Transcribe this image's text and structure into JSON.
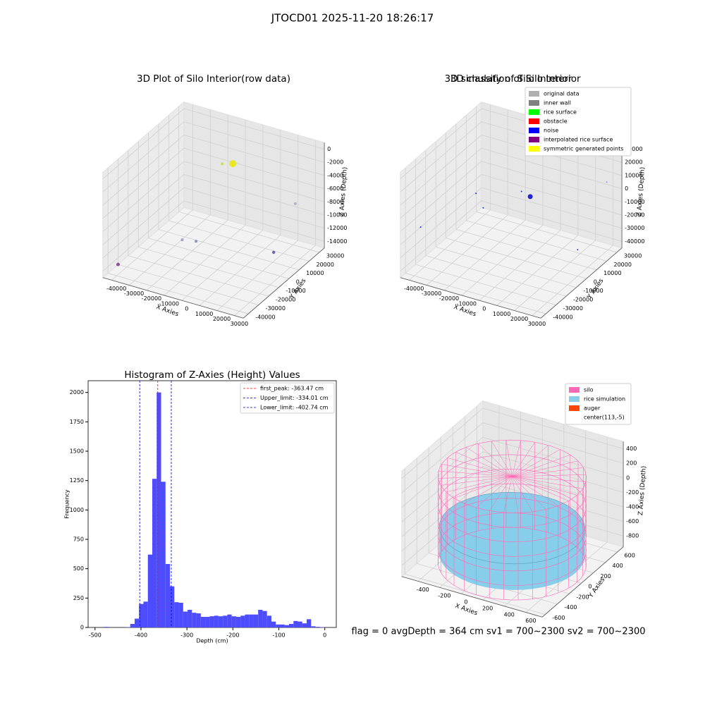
{
  "title": "JTOCD01 2025-11-20 18:26:17",
  "footer": "flag = 0     avgDepth = 364 cm  sv1 = 700~2300  sv2 = 700~2300",
  "chart_data": [
    {
      "type": "scatter3d",
      "title": "3D Plot of Silo Interior(row data)",
      "xlabel": "X Axies",
      "ylabel": "Y Axies",
      "zlabel": "Z Axies (Depth)",
      "xlim": [
        -45000,
        35000
      ],
      "ylim": [
        -45000,
        35000
      ],
      "zlim": [
        -15000,
        1000
      ],
      "xticks": [
        -40000,
        -30000,
        -20000,
        -10000,
        0,
        10000,
        20000,
        30000
      ],
      "yticks": [
        -40000,
        -30000,
        -20000,
        -10000,
        0,
        10000,
        20000,
        30000
      ],
      "zticks": [
        -14000,
        -12000,
        -10000,
        -8000,
        -6000,
        -4000,
        -2000,
        0
      ],
      "points": {
        "x": [
          3000,
          -3000,
          30000,
          -20000,
          -15000,
          35000,
          -45000
        ],
        "y": [
          0,
          0,
          15000,
          -10000,
          -5000,
          -15000,
          -30000
        ],
        "z": [
          0,
          -500,
          -6000,
          -12000,
          -12500,
          -9000,
          -15000
        ],
        "sizes": [
          5,
          2,
          2,
          2,
          2,
          2.2,
          2.5
        ],
        "colors": [
          "#e8e800",
          "#c8d840",
          "#a8a8c8",
          "#9494c4",
          "#8080c0",
          "#5a4a9a",
          "#7a3a8a"
        ]
      }
    },
    {
      "type": "scatter3d",
      "title": "3D classify of Silo Interior",
      "xlabel": "X Axies",
      "ylabel": "Y Axies",
      "zlabel": "Z Axies (Depth)",
      "xlim": [
        -45000,
        35000
      ],
      "ylim": [
        -45000,
        35000
      ],
      "zlim": [
        -45000,
        35000
      ],
      "xticks": [
        -40000,
        -30000,
        -20000,
        -10000,
        0,
        10000,
        20000,
        30000
      ],
      "yticks": [
        -40000,
        -30000,
        -20000,
        -10000,
        0,
        10000,
        20000,
        30000
      ],
      "zticks": [
        -40000,
        -30000,
        -20000,
        -10000,
        0,
        10000,
        20000,
        30000
      ],
      "points": {
        "x": [
          3000,
          -2000,
          -25000,
          -18000,
          30000,
          -45000,
          35000
        ],
        "y": [
          0,
          0,
          -5000,
          -10000,
          0,
          -25000,
          20000
        ],
        "z": [
          5000,
          7000,
          0,
          -5000,
          -25000,
          -20000,
          15000
        ],
        "sizes": [
          3.5,
          1,
          1,
          1,
          1,
          1,
          1
        ],
        "colors": [
          "#0000cc",
          "#0000ff",
          "#0000ff",
          "#0000ff",
          "#0000ff",
          "#0000ff",
          "#8080ff"
        ]
      },
      "legend": [
        {
          "name": "original data",
          "color": "#b0b0b0"
        },
        {
          "name": "inner wall",
          "color": "#808080"
        },
        {
          "name": "rice surface",
          "color": "#00ff00"
        },
        {
          "name": "obstacle",
          "color": "#ff0000"
        },
        {
          "name": "noise",
          "color": "#0000ff"
        },
        {
          "name": "interpolated rice surface",
          "color": "#800080"
        },
        {
          "name": "symmetric generated points",
          "color": "#ffff00"
        }
      ]
    },
    {
      "type": "histogram",
      "title": "Histogram of Z-Axies (Height) Values",
      "xlabel": "Depth (cm)",
      "ylabel": "Frequency",
      "color": "#4d4dff",
      "xlim": [
        -515,
        25
      ],
      "ylim": [
        0,
        2100
      ],
      "xticks": [
        -500,
        -400,
        -300,
        -200,
        -100,
        0
      ],
      "yticks": [
        0,
        250,
        500,
        750,
        1000,
        1250,
        1500,
        1750,
        2000
      ],
      "bins": [
        -481,
        -471.4,
        -461.8,
        -452.2,
        -442.6,
        -433,
        -423.4,
        -413.8,
        -404.2,
        -394.6,
        -385,
        -375.4,
        -365.8,
        -356.2,
        -346.6,
        -337,
        -327.4,
        -317.8,
        -308.2,
        -298.6,
        -289,
        -279.4,
        -269.8,
        -260.2,
        -250.6,
        -241,
        -231.4,
        -221.8,
        -212.2,
        -202.6,
        -193,
        -183.4,
        -173.8,
        -164.2,
        -154.6,
        -145,
        -135.4,
        -125.8,
        -116.2,
        -106.6,
        -97,
        -87.4,
        -77.8,
        -68.2,
        -58.6,
        -49,
        -39.4,
        -29.8,
        -20.2,
        -10.6,
        -1
      ],
      "values": [
        5,
        0,
        0,
        0,
        0,
        3,
        30,
        75,
        200,
        220,
        620,
        1265,
        2000,
        1240,
        540,
        350,
        215,
        210,
        135,
        150,
        125,
        120,
        90,
        90,
        95,
        100,
        95,
        100,
        110,
        95,
        90,
        100,
        110,
        110,
        110,
        150,
        140,
        100,
        50,
        25,
        25,
        20,
        30,
        55,
        50,
        35,
        70,
        10,
        5,
        3
      ],
      "vlines": [
        {
          "name": "first_peak: -363.47 cm",
          "value": -363.47,
          "color": "#ff0000"
        },
        {
          "name": "Upper_limit: -334.01 cm",
          "value": -334.01,
          "color": "#0000cc"
        },
        {
          "name": "Lower_limit: -402.74 cm",
          "value": -402.74,
          "color": "#0000cc"
        }
      ]
    },
    {
      "type": "silo3d",
      "title": "3D simulation of Silo Interior",
      "xlabel": "X Axies",
      "ylabel": "Y Axies",
      "zlabel": "Z Axies (Depth)",
      "xlim": [
        -550,
        750
      ],
      "ylim": [
        -650,
        700
      ],
      "zlim": [
        -950,
        500
      ],
      "xticks": [
        -400,
        -200,
        0,
        200,
        400,
        600
      ],
      "yticks": [
        -600,
        -400,
        -200,
        0,
        200,
        400,
        600
      ],
      "zticks": [
        -800,
        -600,
        -400,
        -200,
        0,
        200,
        400
      ],
      "center": [
        113,
        -5
      ],
      "silo": {
        "radius": 600,
        "z": [
          -950,
          250
        ],
        "color": "#ff69b4"
      },
      "rice": {
        "radius": 590,
        "z": [
          -820,
          -460
        ],
        "color": "#87ceeb"
      },
      "legend": [
        {
          "name": "silo",
          "color": "#ff69b4"
        },
        {
          "name": "rice simulation",
          "color": "#87ceeb"
        },
        {
          "name": "auger",
          "color": "#ff4500"
        },
        {
          "name": "center(113,-5)",
          "color": "#ffffff"
        }
      ]
    }
  ]
}
